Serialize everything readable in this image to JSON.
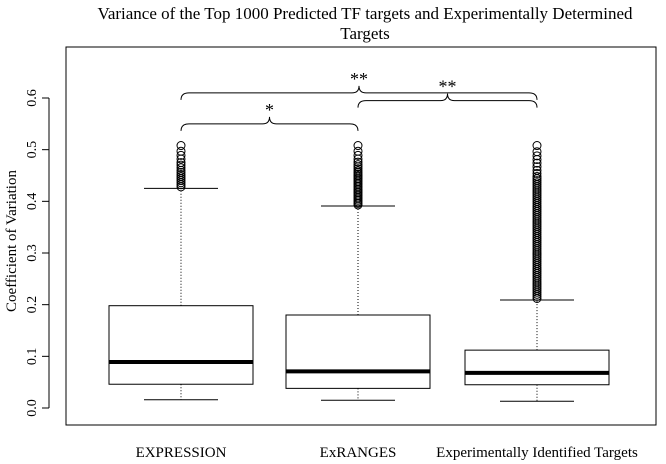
{
  "chart_data": {
    "type": "boxplot",
    "title": "Variance of the Top 1000 Predicted TF targets and Experimentally Determined Targets",
    "title_lines": [
      "Variance of the Top 1000 Predicted TF targets and Experimentally Determined",
      "Targets"
    ],
    "xlabel": "",
    "ylabel": "Coefficient of Variation",
    "ylim": [
      0.0,
      0.65
    ],
    "yticks": [
      0.0,
      0.1,
      0.2,
      0.3,
      0.4,
      0.5,
      0.6
    ],
    "ytick_labels": [
      "0.0",
      "0.1",
      "0.2",
      "0.3",
      "0.4",
      "0.5",
      "0.6"
    ],
    "grid": false,
    "boxes": [
      {
        "category": "EXPRESSION",
        "whisker_low": 0.016,
        "q1": 0.046,
        "median": 0.089,
        "q3": 0.198,
        "whisker_high": 0.425,
        "outliers": [
          0.428,
          0.432,
          0.436,
          0.44,
          0.444,
          0.448,
          0.452,
          0.456,
          0.46,
          0.465,
          0.47,
          0.475,
          0.482,
          0.489,
          0.497,
          0.508
        ]
      },
      {
        "category": "ExRANGES",
        "whisker_low": 0.015,
        "q1": 0.038,
        "median": 0.071,
        "q3": 0.18,
        "whisker_high": 0.391,
        "outliers": [
          0.393,
          0.396,
          0.399,
          0.402,
          0.405,
          0.408,
          0.411,
          0.414,
          0.417,
          0.42,
          0.423,
          0.426,
          0.429,
          0.432,
          0.435,
          0.438,
          0.441,
          0.444,
          0.447,
          0.45,
          0.453,
          0.456,
          0.459,
          0.463,
          0.467,
          0.471,
          0.476,
          0.482,
          0.489,
          0.497,
          0.508
        ]
      },
      {
        "category": "Experimentally Identified Targets",
        "whisker_low": 0.013,
        "q1": 0.045,
        "median": 0.068,
        "q3": 0.112,
        "whisker_high": 0.209,
        "outliers": [
          0.212,
          0.216,
          0.22,
          0.224,
          0.228,
          0.232,
          0.236,
          0.24,
          0.244,
          0.248,
          0.252,
          0.256,
          0.26,
          0.264,
          0.268,
          0.272,
          0.276,
          0.28,
          0.284,
          0.288,
          0.292,
          0.296,
          0.3,
          0.304,
          0.308,
          0.312,
          0.316,
          0.32,
          0.324,
          0.328,
          0.332,
          0.336,
          0.34,
          0.344,
          0.348,
          0.352,
          0.356,
          0.36,
          0.364,
          0.368,
          0.372,
          0.376,
          0.38,
          0.384,
          0.388,
          0.392,
          0.396,
          0.4,
          0.404,
          0.408,
          0.412,
          0.416,
          0.42,
          0.424,
          0.428,
          0.432,
          0.436,
          0.44,
          0.444,
          0.448,
          0.454,
          0.46,
          0.467,
          0.474,
          0.481,
          0.488,
          0.496,
          0.508
        ]
      }
    ],
    "annotations": [
      {
        "from": 0,
        "to": 2,
        "level": 0.61,
        "label": "**"
      },
      {
        "from": 0,
        "to": 1,
        "level": 0.55,
        "label": "*"
      },
      {
        "from": 1,
        "to": 2,
        "level": 0.595,
        "label": "**"
      }
    ]
  }
}
